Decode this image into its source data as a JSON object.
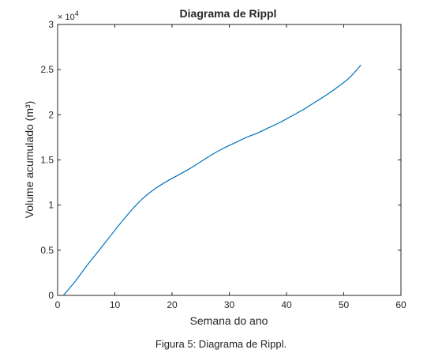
{
  "chart_data": {
    "type": "line",
    "title": "Diagrama de Rippl",
    "xlabel": "Semana do ano",
    "ylabel": "Volume acumulado (m³)",
    "xlim": [
      0,
      60
    ],
    "ylim": [
      0,
      30000
    ],
    "xticks": [
      "0",
      "10",
      "20",
      "30",
      "40",
      "50",
      "60"
    ],
    "yticks": [
      "0",
      "0.5",
      "1",
      "1.5",
      "2",
      "2.5",
      "3"
    ],
    "yexponent_base": "× 10",
    "yexponent_power": "4",
    "grid": false,
    "series": [
      {
        "color": "#0072bd",
        "x": [
          1,
          3,
          5,
          7,
          9,
          11,
          13,
          15,
          17,
          19,
          21,
          23,
          25,
          27,
          29,
          31,
          33,
          35,
          37,
          39,
          41,
          43,
          45,
          47,
          49,
          51,
          53
        ],
        "y": [
          0,
          1500,
          3200,
          4800,
          6400,
          8000,
          9500,
          10800,
          11800,
          12600,
          13300,
          14000,
          14800,
          15600,
          16300,
          16900,
          17500,
          18000,
          18600,
          19200,
          19900,
          20600,
          21400,
          22200,
          23100,
          24100,
          25500
        ]
      }
    ]
  },
  "caption": "Figura 5: Diagrama de Rippl."
}
